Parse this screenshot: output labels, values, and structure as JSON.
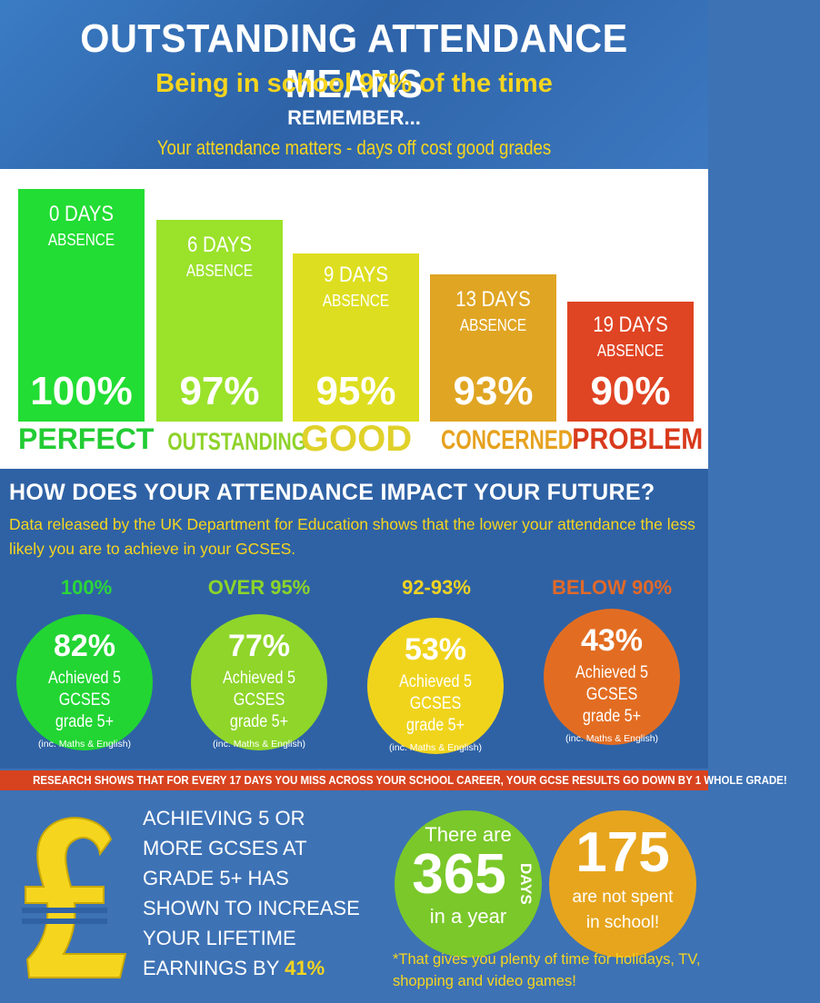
{
  "header": {
    "title": "OUTSTANDING ATTENDANCE MEANS",
    "subtitle": "Being in school 97% of the time",
    "remember": "REMEMBER...",
    "tagline": "Your attendance matters - days off cost good grades"
  },
  "levels": [
    {
      "days": "0 DAYS",
      "absence": "ABSENCE",
      "percent": "100%",
      "label": "PERFECT",
      "color": "#22dd33",
      "label_color": "#22cc33"
    },
    {
      "days": "6 DAYS",
      "absence": "ABSENCE",
      "percent": "97%",
      "label": "OUTSTANDING",
      "color": "#9be22b",
      "label_color": "#8fd22a"
    },
    {
      "days": "9 DAYS",
      "absence": "ABSENCE",
      "percent": "95%",
      "label": "GOOD",
      "color": "#dede20",
      "label_color": "#e0d12a"
    },
    {
      "days": "13 DAYS",
      "absence": "ABSENCE",
      "percent": "93%",
      "label": "CONCERNED",
      "color": "#e0a523",
      "label_color": "#e6a21f"
    },
    {
      "days": "19 DAYS",
      "absence": "ABSENCE",
      "percent": "90%",
      "label": "PROBLEM",
      "color": "#df4423",
      "label_color": "#d83a1c"
    }
  ],
  "impact": {
    "title": "HOW DOES YOUR ATTENDANCE IMPACT YOUR FUTURE?",
    "text": "Data released by the UK Department for Education shows that the lower your attendance the less likely you are to achieve in your GCSES.",
    "groups": [
      {
        "label": "100%",
        "label_color": "#2bd63a",
        "percent": "82%",
        "achieved": "Achieved 5 GCSES",
        "grade": "grade 5+",
        "note": "(inc. Maths & English)",
        "color": "#22d533"
      },
      {
        "label": "OVER 95%",
        "label_color": "#8cd42a",
        "percent": "77%",
        "achieved": "Achieved 5 GCSES",
        "grade": "grade 5+",
        "note": "(inc. Maths & English)",
        "color": "#8fd52a"
      },
      {
        "label": "92-93%",
        "label_color": "#f0d322",
        "percent": "53%",
        "achieved": "Achieved 5 GCSES",
        "grade": "grade 5+",
        "note": "(inc. Maths & English)",
        "color": "#f0d41c"
      },
      {
        "label": "BELOW 90%",
        "label_color": "#e0692a",
        "percent": "43%",
        "achieved": "Achieved 5 GCSES",
        "grade": "grade 5+",
        "note": "(inc. Maths & English)",
        "color": "#e26d22"
      }
    ]
  },
  "research": "RESEARCH SHOWS THAT FOR EVERY 17 DAYS YOU MISS ACROSS YOUR SCHOOL CAREER, YOUR GCSE RESULTS GO DOWN BY 1 WHOLE GRADE!",
  "earnings": {
    "icon": "pound-icon",
    "lines": [
      "ACHIEVING 5 OR",
      "MORE GCSES AT",
      "GRADE 5+ HAS",
      "SHOWN TO INCREASE",
      "YOUR LIFETIME"
    ],
    "last_prefix": "EARNINGS BY ",
    "highlight": "41%"
  },
  "year": {
    "there_are": "There are",
    "number": "365",
    "days": "DAYS",
    "in_a_year": "in a year"
  },
  "not_school": {
    "number": "175",
    "line1": "are not spent",
    "line2": "in school!"
  },
  "footnote": "*That gives you plenty of time for holidays, TV, shopping and video games!"
}
